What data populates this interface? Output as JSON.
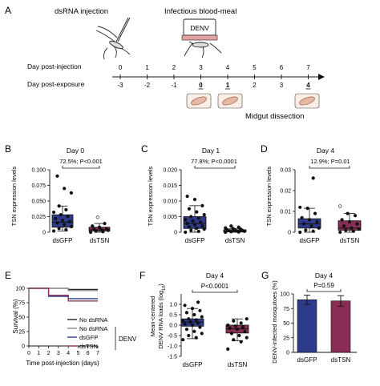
{
  "panelA": {
    "letter": "A",
    "dsrna_label": "dsRNA injection",
    "blood_label": "Infectious blood-meal",
    "denv_label": "DENV",
    "row1_label": "Day post-injection",
    "row2_label": "Day post-exposure",
    "row1_ticks": [
      "0",
      "1",
      "2",
      "3",
      "4",
      "5",
      "6",
      "7"
    ],
    "row2_ticks": [
      "-3",
      "-2",
      "-1",
      "0",
      "1",
      "2",
      "3",
      "4"
    ],
    "row2_bold": [
      "0",
      "1",
      "4"
    ],
    "dissection_label": "Midgut dissection"
  },
  "panelB": {
    "letter": "B",
    "title": "Day 0",
    "stat": "72.5%; P<0.001",
    "ylabel": "TSN expression levels",
    "yticks": [
      "0.100",
      "0.075",
      "0.050",
      "0.025",
      "0"
    ],
    "groups": [
      "dsGFP",
      "dsTSN"
    ]
  },
  "panelC": {
    "letter": "C",
    "title": "Day 1",
    "stat": "77.8%; P<0.0001",
    "ylabel": "TSN expression levels",
    "yticks": [
      "0.020",
      "0.015",
      "0.010",
      "0.005",
      "0"
    ],
    "groups": [
      "dsGFP",
      "dsTSN"
    ]
  },
  "panelD": {
    "letter": "D",
    "title": "Day 4",
    "stat": "12.9%; P=0.01",
    "ylabel": "TSN expression levels",
    "yticks": [
      "0.03",
      "0.02",
      "0.01",
      "0"
    ],
    "groups": [
      "dsGFP",
      "dsTSN"
    ]
  },
  "panelE": {
    "letter": "E",
    "ylabel": "Survival (%)",
    "xlabel": "Time post-injection (days)",
    "yticks": [
      "100",
      "75",
      "50",
      "25",
      "0"
    ],
    "xticks": [
      "0",
      "1",
      "2",
      "3",
      "4",
      "5",
      "6",
      "7"
    ],
    "legend": [
      "No dsRNA",
      "No dsRNA",
      "dsGFP",
      "dsTSN"
    ],
    "legend_group": "DENV"
  },
  "panelF": {
    "letter": "F",
    "title": "Day 4",
    "stat": "P<0.0001",
    "ylabel1": "Mean-centered",
    "ylabel2": "DENV RNA loads (log",
    "ylabel_sub": "10",
    "ylabel_end": ")",
    "yticks": [
      "1.0",
      "0.5",
      "0.0",
      "-0.5",
      "-1.0",
      "-1.5"
    ],
    "groups": [
      "dsGFP",
      "dsTSN"
    ]
  },
  "panelG": {
    "letter": "G",
    "title": "Day 4",
    "stat": "P=0.59",
    "ylabel": "DENV-infected mosquitoes (%)",
    "yticks": [
      "100",
      "75",
      "50",
      "25",
      "0"
    ],
    "groups": [
      "dsGFP",
      "dsTSN"
    ]
  },
  "colors": {
    "dsGFP": "#2e3a8c",
    "dsTSN": "#8a2d55",
    "survival_black": "#222222",
    "survival_gray": "#888888"
  },
  "chart_data": [
    {
      "panel": "B",
      "type": "box",
      "title": "Day 0",
      "ylabel": "TSN expression levels",
      "ylim": [
        0,
        0.1
      ],
      "series": [
        {
          "name": "dsGFP",
          "q1": 0.008,
          "median": 0.016,
          "q3": 0.028,
          "whisker_low": 0.002,
          "whisker_high": 0.042,
          "points": [
            0.002,
            0.004,
            0.006,
            0.009,
            0.012,
            0.015,
            0.017,
            0.019,
            0.022,
            0.025,
            0.028,
            0.032,
            0.036,
            0.042,
            0.063,
            0.07,
            0.09
          ]
        },
        {
          "name": "dsTSN",
          "q1": 0.002,
          "median": 0.004,
          "q3": 0.008,
          "whisker_low": 0.0,
          "whisker_high": 0.014,
          "points": [
            0.0,
            0.001,
            0.002,
            0.003,
            0.004,
            0.005,
            0.006,
            0.008,
            0.01,
            0.014,
            0.024
          ]
        }
      ]
    },
    {
      "panel": "C",
      "type": "box",
      "title": "Day 1",
      "ylabel": "TSN expression levels",
      "ylim": [
        0,
        0.02
      ],
      "series": [
        {
          "name": "dsGFP",
          "q1": 0.0012,
          "median": 0.0028,
          "q3": 0.005,
          "whisker_low": 0.0,
          "whisker_high": 0.0085,
          "points": [
            0.0,
            0.0003,
            0.0006,
            0.001,
            0.0013,
            0.0017,
            0.002,
            0.0024,
            0.0028,
            0.0032,
            0.0036,
            0.004,
            0.0045,
            0.005,
            0.0056,
            0.0065,
            0.0075,
            0.0085,
            0.0105,
            0.0115
          ]
        },
        {
          "name": "dsTSN",
          "q1": 0.0001,
          "median": 0.0004,
          "q3": 0.0008,
          "whisker_low": 0.0,
          "whisker_high": 0.0012,
          "points": [
            0.0,
            0.0001,
            0.0002,
            0.0003,
            0.0004,
            0.0005,
            0.0006,
            0.0007,
            0.0008,
            0.001,
            0.0012,
            0.0014,
            0.0016,
            0.002
          ]
        }
      ]
    },
    {
      "panel": "D",
      "type": "box",
      "title": "Day 4",
      "ylabel": "TSN expression levels",
      "ylim": [
        0,
        0.03
      ],
      "series": [
        {
          "name": "dsGFP",
          "q1": 0.002,
          "median": 0.004,
          "q3": 0.0065,
          "whisker_low": 0.0,
          "whisker_high": 0.0115,
          "points": [
            0.0,
            0.0005,
            0.001,
            0.002,
            0.003,
            0.004,
            0.005,
            0.006,
            0.007,
            0.009,
            0.0115,
            0.012,
            0.026
          ]
        },
        {
          "name": "dsTSN",
          "q1": 0.001,
          "median": 0.002,
          "q3": 0.0055,
          "whisker_low": 0.0,
          "whisker_high": 0.009,
          "points": [
            0.0,
            0.0005,
            0.001,
            0.0015,
            0.002,
            0.003,
            0.004,
            0.005,
            0.006,
            0.008,
            0.009,
            0.0125
          ]
        }
      ]
    },
    {
      "panel": "E",
      "type": "line",
      "xlabel": "Time post-injection (days)",
      "ylabel": "Survival (%)",
      "ylim": [
        0,
        100
      ],
      "x": [
        0,
        1,
        2,
        3,
        4,
        5,
        6,
        7
      ],
      "series": [
        {
          "name": "No dsRNA",
          "values": [
            100,
            100,
            100,
            100,
            98,
            98,
            98,
            98
          ]
        },
        {
          "name": "No dsRNA",
          "values": [
            100,
            100,
            100,
            100,
            96,
            96,
            96,
            96
          ]
        },
        {
          "name": "dsGFP",
          "values": [
            100,
            100,
            86,
            86,
            82,
            82,
            82,
            82
          ]
        },
        {
          "name": "dsTSN",
          "values": [
            100,
            100,
            88,
            88,
            78,
            78,
            78,
            78
          ]
        }
      ]
    },
    {
      "panel": "F",
      "type": "box",
      "title": "Day 4",
      "ylim": [
        -1.5,
        1.5
      ],
      "series": [
        {
          "name": "dsGFP",
          "q1": -0.05,
          "median": 0.15,
          "q3": 0.3,
          "whisker_low": -0.65,
          "whisker_high": 0.8,
          "points": [
            -0.7,
            -0.6,
            -0.5,
            -0.4,
            -0.3,
            -0.2,
            -0.1,
            0.0,
            0.05,
            0.1,
            0.15,
            0.2,
            0.25,
            0.3,
            0.4,
            0.5,
            0.6,
            0.7,
            0.8,
            0.95,
            1.1
          ]
        },
        {
          "name": "dsTSN",
          "q1": -0.38,
          "median": -0.18,
          "q3": 0.0,
          "whisker_low": -0.75,
          "whisker_high": 0.3,
          "points": [
            -1.15,
            -0.8,
            -0.7,
            -0.6,
            -0.5,
            -0.4,
            -0.3,
            -0.2,
            -0.15,
            -0.1,
            -0.05,
            0.0,
            0.1,
            0.2,
            0.3
          ]
        }
      ]
    },
    {
      "panel": "G",
      "type": "bar",
      "title": "Day 4",
      "ylabel": "DENV-infected mosquitoes (%)",
      "ylim": [
        0,
        100
      ],
      "categories": [
        "dsGFP",
        "dsTSN"
      ],
      "values": [
        90,
        88
      ],
      "errors": [
        8,
        9
      ]
    }
  ]
}
